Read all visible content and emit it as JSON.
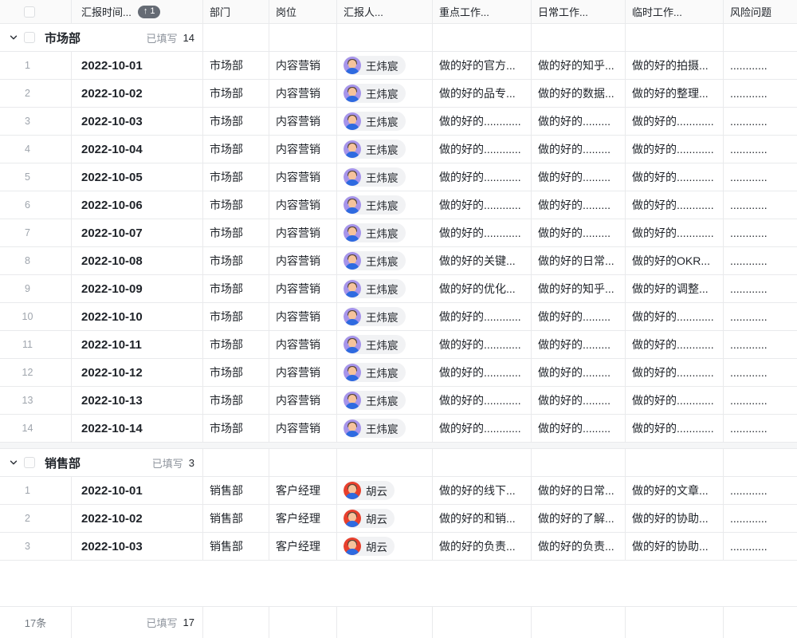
{
  "header": {
    "columns": [
      {
        "label": ""
      },
      {
        "label": "汇报时间..."
      },
      {
        "label": "部门"
      },
      {
        "label": "岗位"
      },
      {
        "label": "汇报人..."
      },
      {
        "label": "重点工作..."
      },
      {
        "label": "日常工作..."
      },
      {
        "label": "临时工作..."
      },
      {
        "label": "风险问题"
      }
    ],
    "sort_arrow": "↑",
    "sort_count": "1"
  },
  "colors": {
    "avatar_purple": "#a694ea",
    "avatar_red": "#e8402d",
    "badge_bg": "#656b74",
    "grid_line": "#e9eaec"
  },
  "groups": [
    {
      "name": "市场部",
      "filled_label": "已填写",
      "filled_count": "14",
      "rows": [
        {
          "index": "1",
          "date": "2022-10-01",
          "dept": "市场部",
          "pos": "内容营销",
          "reporter": "王炜宸",
          "avatar_color": "#a694ea",
          "key_work": "做的好的官方...",
          "daily_work": "做的好的知乎...",
          "temp_work": "做的好的拍摄...",
          "risk": "............"
        },
        {
          "index": "2",
          "date": "2022-10-02",
          "dept": "市场部",
          "pos": "内容营销",
          "reporter": "王炜宸",
          "avatar_color": "#a694ea",
          "key_work": "做的好的品专...",
          "daily_work": "做的好的数据...",
          "temp_work": "做的好的整理...",
          "risk": "............"
        },
        {
          "index": "3",
          "date": "2022-10-03",
          "dept": "市场部",
          "pos": "内容营销",
          "reporter": "王炜宸",
          "avatar_color": "#a694ea",
          "key_work": "做的好的............",
          "daily_work": "做的好的.........",
          "temp_work": "做的好的............",
          "risk": "............"
        },
        {
          "index": "4",
          "date": "2022-10-04",
          "dept": "市场部",
          "pos": "内容营销",
          "reporter": "王炜宸",
          "avatar_color": "#a694ea",
          "key_work": "做的好的............",
          "daily_work": "做的好的.........",
          "temp_work": "做的好的............",
          "risk": "............"
        },
        {
          "index": "5",
          "date": "2022-10-05",
          "dept": "市场部",
          "pos": "内容营销",
          "reporter": "王炜宸",
          "avatar_color": "#a694ea",
          "key_work": "做的好的............",
          "daily_work": "做的好的.........",
          "temp_work": "做的好的............",
          "risk": "............"
        },
        {
          "index": "6",
          "date": "2022-10-06",
          "dept": "市场部",
          "pos": "内容营销",
          "reporter": "王炜宸",
          "avatar_color": "#a694ea",
          "key_work": "做的好的............",
          "daily_work": "做的好的.........",
          "temp_work": "做的好的............",
          "risk": "............"
        },
        {
          "index": "7",
          "date": "2022-10-07",
          "dept": "市场部",
          "pos": "内容营销",
          "reporter": "王炜宸",
          "avatar_color": "#a694ea",
          "key_work": "做的好的............",
          "daily_work": "做的好的.........",
          "temp_work": "做的好的............",
          "risk": "............"
        },
        {
          "index": "8",
          "date": "2022-10-08",
          "dept": "市场部",
          "pos": "内容营销",
          "reporter": "王炜宸",
          "avatar_color": "#a694ea",
          "key_work": "做的好的关键...",
          "daily_work": "做的好的日常...",
          "temp_work": "做的好的OKR...",
          "risk": "............"
        },
        {
          "index": "9",
          "date": "2022-10-09",
          "dept": "市场部",
          "pos": "内容营销",
          "reporter": "王炜宸",
          "avatar_color": "#a694ea",
          "key_work": "做的好的优化...",
          "daily_work": "做的好的知乎...",
          "temp_work": "做的好的调整...",
          "risk": "............"
        },
        {
          "index": "10",
          "date": "2022-10-10",
          "dept": "市场部",
          "pos": "内容营销",
          "reporter": "王炜宸",
          "avatar_color": "#a694ea",
          "key_work": "做的好的............",
          "daily_work": "做的好的.........",
          "temp_work": "做的好的............",
          "risk": "............"
        },
        {
          "index": "11",
          "date": "2022-10-11",
          "dept": "市场部",
          "pos": "内容营销",
          "reporter": "王炜宸",
          "avatar_color": "#a694ea",
          "key_work": "做的好的............",
          "daily_work": "做的好的.........",
          "temp_work": "做的好的............",
          "risk": "............"
        },
        {
          "index": "12",
          "date": "2022-10-12",
          "dept": "市场部",
          "pos": "内容营销",
          "reporter": "王炜宸",
          "avatar_color": "#a694ea",
          "key_work": "做的好的............",
          "daily_work": "做的好的.........",
          "temp_work": "做的好的............",
          "risk": "............"
        },
        {
          "index": "13",
          "date": "2022-10-13",
          "dept": "市场部",
          "pos": "内容营销",
          "reporter": "王炜宸",
          "avatar_color": "#a694ea",
          "key_work": "做的好的............",
          "daily_work": "做的好的.........",
          "temp_work": "做的好的............",
          "risk": "............"
        },
        {
          "index": "14",
          "date": "2022-10-14",
          "dept": "市场部",
          "pos": "内容营销",
          "reporter": "王炜宸",
          "avatar_color": "#a694ea",
          "key_work": "做的好的............",
          "daily_work": "做的好的.........",
          "temp_work": "做的好的............",
          "risk": "............"
        }
      ]
    },
    {
      "name": "销售部",
      "filled_label": "已填写",
      "filled_count": "3",
      "rows": [
        {
          "index": "1",
          "date": "2022-10-01",
          "dept": "销售部",
          "pos": "客户经理",
          "reporter": "胡云",
          "avatar_color": "#e8402d",
          "key_work": "做的好的线下...",
          "daily_work": "做的好的日常...",
          "temp_work": "做的好的文章...",
          "risk": "............"
        },
        {
          "index": "2",
          "date": "2022-10-02",
          "dept": "销售部",
          "pos": "客户经理",
          "reporter": "胡云",
          "avatar_color": "#e8402d",
          "key_work": "做的好的和销...",
          "daily_work": "做的好的了解...",
          "temp_work": "做的好的协助...",
          "risk": "............"
        },
        {
          "index": "3",
          "date": "2022-10-03",
          "dept": "销售部",
          "pos": "客户经理",
          "reporter": "胡云",
          "avatar_color": "#e8402d",
          "key_work": "做的好的负责...",
          "daily_work": "做的好的负责...",
          "temp_work": "做的好的协助...",
          "risk": "............"
        }
      ]
    }
  ],
  "footer": {
    "total": "17条",
    "filled_label": "已填写",
    "filled_count": "17"
  }
}
